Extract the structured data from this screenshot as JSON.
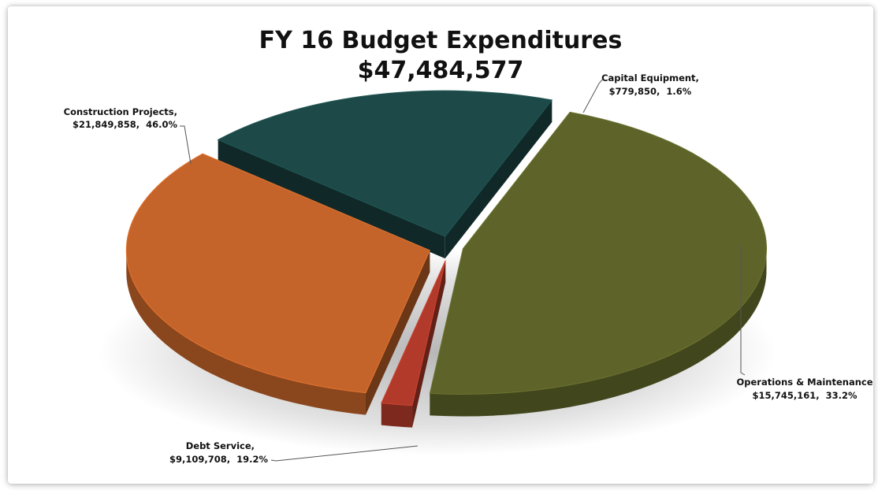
{
  "chart_data": {
    "type": "pie",
    "title": "FY 16 Budget Expenditures",
    "subtitle": "$47,484,577",
    "slices": [
      {
        "name": "Construction Projects,",
        "amount_label": "$21,849,858,",
        "pct_label": "46.0%",
        "value": 21849858,
        "percent": 46.0,
        "color": "#5e6429"
      },
      {
        "name": "Capital Equipment,",
        "amount_label": "$779,850,",
        "pct_label": "1.6%",
        "value": 779850,
        "percent": 1.6,
        "color": "#b23a2a"
      },
      {
        "name": "Operations & Maintenance",
        "amount_label": "$15,745,161,",
        "pct_label": "33.2%",
        "value": 15745161,
        "percent": 33.2,
        "color": "#c5642a"
      },
      {
        "name": "Debt Service,",
        "amount_label": "$9,109,708,",
        "pct_label": "19.2%",
        "value": 9109708,
        "percent": 19.2,
        "color": "#1d4a48"
      }
    ]
  }
}
